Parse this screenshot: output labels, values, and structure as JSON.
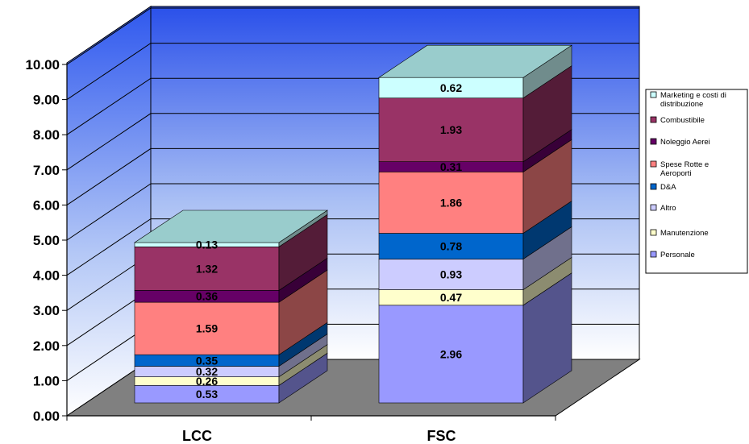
{
  "chart_data": {
    "type": "bar",
    "stacked": true,
    "three_d": true,
    "categories": [
      "LCC",
      "FSC"
    ],
    "ylim": [
      0,
      10
    ],
    "y_ticks": [
      "0.00",
      "1.00",
      "2.00",
      "3.00",
      "4.00",
      "5.00",
      "6.00",
      "7.00",
      "8.00",
      "9.00",
      "10.00"
    ],
    "legend_position": "right",
    "grid": true,
    "series": [
      {
        "name": "Personale",
        "values": [
          0.53,
          2.96
        ],
        "labels": [
          "0.53",
          "2.96"
        ],
        "color": "#9999ff"
      },
      {
        "name": "Manutenzione",
        "values": [
          0.26,
          0.47
        ],
        "labels": [
          "0.26",
          "0.47"
        ],
        "color": "#ffffcc"
      },
      {
        "name": "Altro",
        "values": [
          0.32,
          0.93
        ],
        "labels": [
          "0.32",
          "0.93"
        ],
        "color": "#ccccff"
      },
      {
        "name": "D&A",
        "values": [
          0.35,
          0.78
        ],
        "labels": [
          "0.35",
          "0.78"
        ],
        "color": "#0066cc"
      },
      {
        "name": "Spese Rotte e Aeroporti",
        "values": [
          1.59,
          1.86
        ],
        "labels": [
          "1.59",
          "1.86"
        ],
        "color": "#ff8080"
      },
      {
        "name": "Noleggio Aerei",
        "values": [
          0.36,
          0.31
        ],
        "labels": [
          "0.36",
          "0.31"
        ],
        "color": "#660066"
      },
      {
        "name": "Combustibile",
        "values": [
          1.32,
          1.93
        ],
        "labels": [
          "1.32",
          "1.93"
        ],
        "color": "#993366"
      },
      {
        "name": "Marketing e costi di distribuzione",
        "values": [
          0.13,
          0.62
        ],
        "labels": [
          "0.13",
          "0.62"
        ],
        "color": "#ccffff"
      }
    ],
    "legend_entries": [
      {
        "lines": [
          "Marketing e costi di",
          "distribuzione"
        ],
        "color": "#ccffff"
      },
      {
        "lines": [
          "Combustibile"
        ],
        "color": "#993366"
      },
      {
        "lines": [
          "Noleggio Aerei"
        ],
        "color": "#660066"
      },
      {
        "lines": [
          "Spese Rotte e",
          "Aeroporti"
        ],
        "color": "#ff8080"
      },
      {
        "lines": [
          "D&A"
        ],
        "color": "#0066cc"
      },
      {
        "lines": [
          "Altro"
        ],
        "color": "#ccccff"
      },
      {
        "lines": [
          "Manutenzione"
        ],
        "color": "#ffffcc"
      },
      {
        "lines": [
          "Personale"
        ],
        "color": "#9999ff"
      }
    ]
  }
}
